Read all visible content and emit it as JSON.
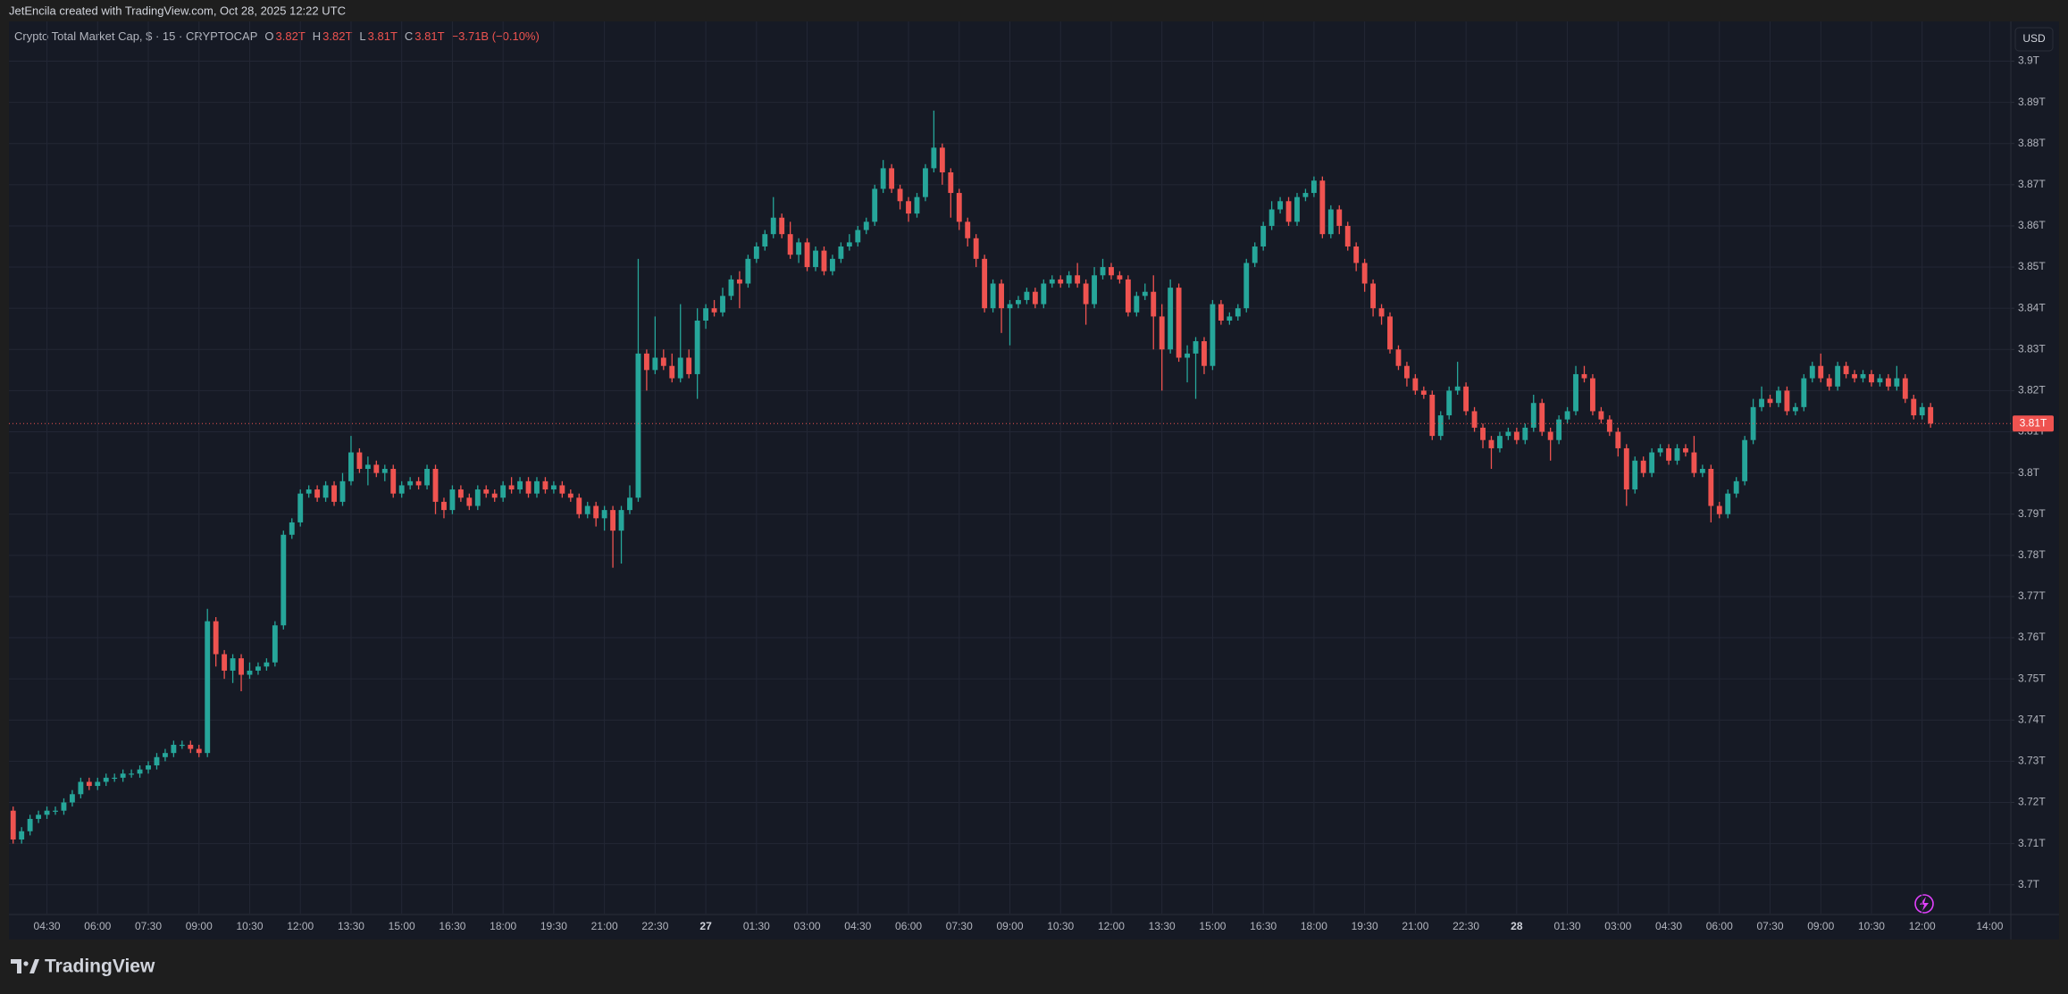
{
  "header": {
    "credit": "JetEncila created with TradingView.com, Oct 28, 2025 12:22 UTC"
  },
  "footer": {
    "brand": "TradingView"
  },
  "chart_data": {
    "type": "candlestick",
    "title": "Crypto Total Market Cap, $ · 15 · CRYPTOCAP",
    "legend": [
      {
        "label": "O",
        "value": "3.82T"
      },
      {
        "label": "H",
        "value": "3.82T"
      },
      {
        "label": "L",
        "value": "3.81T"
      },
      {
        "label": "C",
        "value": "3.81T"
      }
    ],
    "change": "−3.71B (−0.10%)",
    "currency": "USD",
    "up_color": "#26a69a",
    "down_color": "#ef5350",
    "grid": true,
    "ylim": [
      3.693,
      3.909
    ],
    "yticks": [
      {
        "value": 3.7,
        "label": "3.7T"
      },
      {
        "value": 3.71,
        "label": "3.71T"
      },
      {
        "value": 3.72,
        "label": "3.72T"
      },
      {
        "value": 3.73,
        "label": "3.73T"
      },
      {
        "value": 3.74,
        "label": "3.74T"
      },
      {
        "value": 3.75,
        "label": "3.75T"
      },
      {
        "value": 3.76,
        "label": "3.76T"
      },
      {
        "value": 3.77,
        "label": "3.77T"
      },
      {
        "value": 3.78,
        "label": "3.78T"
      },
      {
        "value": 3.79,
        "label": "3.79T"
      },
      {
        "value": 3.8,
        "label": "3.8T"
      },
      {
        "value": 3.81,
        "label": "3.81T"
      },
      {
        "value": 3.82,
        "label": "3.82T"
      },
      {
        "value": 3.83,
        "label": "3.83T"
      },
      {
        "value": 3.84,
        "label": "3.84T"
      },
      {
        "value": 3.85,
        "label": "3.85T"
      },
      {
        "value": 3.86,
        "label": "3.86T"
      },
      {
        "value": 3.87,
        "label": "3.87T"
      },
      {
        "value": 3.88,
        "label": "3.88T"
      },
      {
        "value": 3.89,
        "label": "3.89T"
      },
      {
        "value": 3.9,
        "label": "3.9T"
      }
    ],
    "last_price": {
      "value": 3.812,
      "label": "3.81T"
    },
    "categories": [
      null,
      null,
      null,
      null,
      "04:30",
      null,
      null,
      null,
      null,
      null,
      "06:00",
      null,
      null,
      null,
      null,
      null,
      "07:30",
      null,
      null,
      null,
      null,
      null,
      "09:00",
      null,
      null,
      null,
      null,
      null,
      "10:30",
      null,
      null,
      null,
      null,
      null,
      "12:00",
      null,
      null,
      null,
      null,
      null,
      "13:30",
      null,
      null,
      null,
      null,
      null,
      "15:00",
      null,
      null,
      null,
      null,
      null,
      "16:30",
      null,
      null,
      null,
      null,
      null,
      "18:00",
      null,
      null,
      null,
      null,
      null,
      "19:30",
      null,
      null,
      null,
      null,
      null,
      "21:00",
      null,
      null,
      null,
      null,
      null,
      "22:30",
      null,
      null,
      null,
      null,
      null,
      "27",
      null,
      null,
      null,
      null,
      null,
      "01:30",
      null,
      null,
      null,
      null,
      null,
      "03:00",
      null,
      null,
      null,
      null,
      null,
      "04:30",
      null,
      null,
      null,
      null,
      null,
      "06:00",
      null,
      null,
      null,
      null,
      null,
      "07:30",
      null,
      null,
      null,
      null,
      null,
      "09:00",
      null,
      null,
      null,
      null,
      null,
      "10:30",
      null,
      null,
      null,
      null,
      null,
      "12:00",
      null,
      null,
      null,
      null,
      null,
      "13:30",
      null,
      null,
      null,
      null,
      null,
      "15:00",
      null,
      null,
      null,
      null,
      null,
      "16:30",
      null,
      null,
      null,
      null,
      null,
      "18:00",
      null,
      null,
      null,
      null,
      null,
      "19:30",
      null,
      null,
      null,
      null,
      null,
      "21:00",
      null,
      null,
      null,
      null,
      null,
      "22:30",
      null,
      null,
      null,
      null,
      null,
      "28",
      null,
      null,
      null,
      null,
      null,
      "01:30",
      null,
      null,
      null,
      null,
      null,
      "03:00",
      null,
      null,
      null,
      null,
      null,
      "04:30",
      null,
      null,
      null,
      null,
      null,
      "06:00",
      null,
      null,
      null,
      null,
      null,
      "07:30",
      null,
      null,
      null,
      null,
      null,
      "09:00",
      null,
      null,
      null,
      null,
      null,
      "10:30",
      null,
      null,
      null,
      null,
      null,
      "12:00",
      null,
      null,
      null,
      null,
      null,
      null,
      null,
      "14:00",
      null,
      null
    ],
    "open": [
      3.718,
      3.711,
      3.713,
      3.716,
      3.717,
      3.718,
      3.718,
      3.72,
      3.722,
      3.725,
      3.724,
      3.725,
      3.726,
      3.726,
      3.727,
      3.727,
      3.728,
      3.729,
      3.731,
      3.732,
      3.734,
      3.734,
      3.733,
      3.732,
      3.764,
      3.756,
      3.752,
      3.755,
      3.751,
      3.752,
      3.753,
      3.754,
      3.763,
      3.785,
      3.788,
      3.795,
      3.796,
      3.794,
      3.797,
      3.793,
      3.798,
      3.805,
      3.801,
      3.802,
      3.8,
      3.801,
      3.795,
      3.797,
      3.798,
      3.797,
      3.801,
      3.793,
      3.791,
      3.796,
      3.794,
      3.792,
      3.796,
      3.795,
      3.794,
      3.797,
      3.796,
      3.798,
      3.795,
      3.798,
      3.796,
      3.797,
      3.795,
      3.794,
      3.79,
      3.792,
      3.789,
      3.791,
      3.786,
      3.791,
      3.794,
      3.829,
      3.825,
      3.828,
      3.826,
      3.823,
      3.828,
      3.824,
      3.837,
      3.84,
      3.839,
      3.843,
      3.847,
      3.846,
      3.852,
      3.855,
      3.858,
      3.862,
      3.858,
      3.853,
      3.856,
      3.85,
      3.854,
      3.849,
      3.852,
      3.855,
      3.856,
      3.859,
      3.861,
      3.869,
      3.874,
      3.869,
      3.866,
      3.863,
      3.867,
      3.874,
      3.879,
      3.873,
      3.868,
      3.861,
      3.857,
      3.852,
      3.84,
      3.846,
      3.84,
      3.841,
      3.842,
      3.844,
      3.841,
      3.846,
      3.847,
      3.846,
      3.848,
      3.846,
      3.841,
      3.848,
      3.85,
      3.848,
      3.847,
      3.839,
      3.843,
      3.844,
      3.838,
      3.83,
      3.845,
      3.828,
      3.829,
      3.832,
      3.826,
      3.841,
      3.837,
      3.838,
      3.84,
      3.851,
      3.855,
      3.86,
      3.864,
      3.866,
      3.861,
      3.867,
      3.868,
      3.871,
      3.858,
      3.864,
      3.86,
      3.855,
      3.851,
      3.846,
      3.84,
      3.838,
      3.83,
      3.826,
      3.823,
      3.82,
      3.819,
      3.809,
      3.814,
      3.82,
      3.821,
      3.815,
      3.811,
      3.808,
      3.806,
      3.809,
      3.81,
      3.808,
      3.811,
      3.817,
      3.81,
      3.808,
      3.813,
      3.815,
      3.824,
      3.823,
      3.815,
      3.813,
      3.81,
      3.806,
      3.796,
      3.803,
      3.8,
      3.805,
      3.806,
      3.803,
      3.806,
      3.805,
      3.8,
      3.801,
      3.792,
      3.79,
      3.795,
      3.798,
      3.808,
      3.816,
      3.818,
      3.817,
      3.82,
      3.815,
      3.816,
      3.823,
      3.826,
      3.823,
      3.821,
      3.826,
      3.824,
      3.823,
      3.824,
      3.822,
      3.823,
      3.821,
      3.823,
      3.818,
      3.814,
      3.816,
      null,
      null,
      null,
      null,
      null,
      null,
      null,
      null,
      null
    ],
    "high": [
      3.719,
      3.714,
      3.717,
      3.718,
      3.719,
      3.719,
      3.721,
      3.723,
      3.726,
      3.726,
      3.726,
      3.727,
      3.727,
      3.728,
      3.728,
      3.729,
      3.73,
      3.732,
      3.733,
      3.735,
      3.735,
      3.735,
      3.734,
      3.767,
      3.765,
      3.757,
      3.756,
      3.756,
      3.754,
      3.754,
      3.755,
      3.764,
      3.786,
      3.789,
      3.796,
      3.797,
      3.797,
      3.798,
      3.798,
      3.8,
      3.809,
      3.806,
      3.804,
      3.803,
      3.802,
      3.802,
      3.798,
      3.799,
      3.799,
      3.802,
      3.802,
      3.794,
      3.797,
      3.797,
      3.795,
      3.797,
      3.797,
      3.796,
      3.798,
      3.799,
      3.799,
      3.799,
      3.799,
      3.799,
      3.798,
      3.798,
      3.796,
      3.795,
      3.793,
      3.793,
      3.792,
      3.792,
      3.792,
      3.797,
      3.852,
      3.83,
      3.838,
      3.83,
      3.829,
      3.841,
      3.83,
      3.84,
      3.841,
      3.842,
      3.845,
      3.848,
      3.849,
      3.853,
      3.856,
      3.859,
      3.867,
      3.863,
      3.861,
      3.857,
      3.857,
      3.855,
      3.855,
      3.853,
      3.856,
      3.858,
      3.86,
      3.862,
      3.87,
      3.876,
      3.875,
      3.87,
      3.867,
      3.868,
      3.875,
      3.888,
      3.88,
      3.874,
      3.869,
      3.862,
      3.858,
      3.853,
      3.847,
      3.847,
      3.842,
      3.843,
      3.845,
      3.845,
      3.847,
      3.848,
      3.848,
      3.849,
      3.851,
      3.847,
      3.85,
      3.852,
      3.851,
      3.849,
      3.848,
      3.844,
      3.846,
      3.848,
      3.841,
      3.847,
      3.846,
      3.831,
      3.833,
      3.833,
      3.842,
      3.842,
      3.839,
      3.841,
      3.852,
      3.856,
      3.861,
      3.866,
      3.867,
      3.867,
      3.868,
      3.869,
      3.872,
      3.872,
      3.865,
      3.865,
      3.861,
      3.856,
      3.852,
      3.847,
      3.841,
      3.839,
      3.831,
      3.827,
      3.824,
      3.821,
      3.82,
      3.815,
      3.821,
      3.827,
      3.822,
      3.816,
      3.812,
      3.809,
      3.81,
      3.811,
      3.811,
      3.812,
      3.819,
      3.818,
      3.811,
      3.814,
      3.816,
      3.826,
      3.826,
      3.824,
      3.816,
      3.814,
      3.811,
      3.807,
      3.804,
      3.804,
      3.806,
      3.807,
      3.807,
      3.807,
      3.807,
      3.809,
      3.802,
      3.802,
      3.793,
      3.796,
      3.799,
      3.809,
      3.818,
      3.821,
      3.819,
      3.821,
      3.821,
      3.817,
      3.824,
      3.827,
      3.829,
      3.824,
      3.827,
      3.827,
      3.825,
      3.825,
      3.825,
      3.824,
      3.824,
      3.826,
      3.824,
      3.819,
      3.817,
      3.817,
      null,
      null,
      null,
      null,
      null,
      null,
      null,
      null,
      null
    ],
    "low": [
      3.71,
      3.71,
      3.712,
      3.715,
      3.716,
      3.717,
      3.717,
      3.719,
      3.721,
      3.723,
      3.723,
      3.724,
      3.725,
      3.725,
      3.726,
      3.726,
      3.727,
      3.728,
      3.73,
      3.731,
      3.733,
      3.732,
      3.731,
      3.731,
      3.753,
      3.75,
      3.749,
      3.747,
      3.75,
      3.751,
      3.752,
      3.753,
      3.762,
      3.784,
      3.787,
      3.794,
      3.793,
      3.793,
      3.792,
      3.792,
      3.797,
      3.8,
      3.797,
      3.799,
      3.798,
      3.794,
      3.794,
      3.796,
      3.796,
      3.796,
      3.79,
      3.789,
      3.79,
      3.793,
      3.791,
      3.791,
      3.794,
      3.793,
      3.793,
      3.795,
      3.795,
      3.794,
      3.794,
      3.795,
      3.795,
      3.794,
      3.793,
      3.789,
      3.789,
      3.787,
      3.786,
      3.777,
      3.778,
      3.79,
      3.793,
      3.82,
      3.824,
      3.825,
      3.822,
      3.822,
      3.823,
      3.818,
      3.835,
      3.838,
      3.838,
      3.842,
      3.84,
      3.845,
      3.851,
      3.854,
      3.857,
      3.857,
      3.852,
      3.851,
      3.849,
      3.849,
      3.848,
      3.848,
      3.851,
      3.854,
      3.855,
      3.858,
      3.86,
      3.868,
      3.868,
      3.864,
      3.861,
      3.862,
      3.866,
      3.873,
      3.87,
      3.862,
      3.859,
      3.855,
      3.85,
      3.839,
      3.839,
      3.834,
      3.831,
      3.84,
      3.841,
      3.84,
      3.84,
      3.845,
      3.845,
      3.845,
      3.845,
      3.836,
      3.84,
      3.847,
      3.847,
      3.846,
      3.838,
      3.838,
      3.842,
      3.83,
      3.82,
      3.829,
      3.827,
      3.822,
      3.818,
      3.824,
      3.825,
      3.836,
      3.836,
      3.837,
      3.839,
      3.85,
      3.854,
      3.859,
      3.863,
      3.86,
      3.86,
      3.866,
      3.867,
      3.857,
      3.857,
      3.858,
      3.854,
      3.849,
      3.844,
      3.838,
      3.836,
      3.829,
      3.825,
      3.821,
      3.819,
      3.818,
      3.808,
      3.808,
      3.813,
      3.819,
      3.814,
      3.81,
      3.806,
      3.801,
      3.805,
      3.808,
      3.807,
      3.807,
      3.81,
      3.809,
      3.803,
      3.807,
      3.812,
      3.814,
      3.822,
      3.814,
      3.812,
      3.809,
      3.804,
      3.792,
      3.795,
      3.799,
      3.799,
      3.804,
      3.802,
      3.802,
      3.804,
      3.799,
      3.799,
      3.788,
      3.789,
      3.789,
      3.794,
      3.797,
      3.807,
      3.815,
      3.816,
      3.816,
      3.814,
      3.814,
      3.815,
      3.822,
      3.822,
      3.82,
      3.82,
      3.823,
      3.822,
      3.822,
      3.821,
      3.821,
      3.82,
      3.82,
      3.817,
      3.813,
      3.813,
      3.811,
      null,
      null,
      null,
      null,
      null,
      null,
      null,
      null,
      null
    ],
    "close": [
      3.711,
      3.713,
      3.716,
      3.717,
      3.718,
      3.718,
      3.72,
      3.722,
      3.725,
      3.724,
      3.725,
      3.726,
      3.726,
      3.727,
      3.727,
      3.728,
      3.729,
      3.731,
      3.732,
      3.734,
      3.734,
      3.733,
      3.732,
      3.764,
      3.756,
      3.752,
      3.755,
      3.751,
      3.752,
      3.753,
      3.754,
      3.763,
      3.785,
      3.788,
      3.795,
      3.796,
      3.794,
      3.797,
      3.793,
      3.798,
      3.805,
      3.801,
      3.802,
      3.8,
      3.801,
      3.795,
      3.797,
      3.798,
      3.797,
      3.801,
      3.793,
      3.791,
      3.796,
      3.794,
      3.792,
      3.796,
      3.795,
      3.794,
      3.797,
      3.796,
      3.798,
      3.795,
      3.798,
      3.796,
      3.797,
      3.795,
      3.794,
      3.79,
      3.792,
      3.789,
      3.791,
      3.786,
      3.791,
      3.794,
      3.829,
      3.825,
      3.828,
      3.826,
      3.823,
      3.828,
      3.824,
      3.837,
      3.84,
      3.839,
      3.843,
      3.847,
      3.846,
      3.852,
      3.855,
      3.858,
      3.862,
      3.858,
      3.853,
      3.856,
      3.85,
      3.854,
      3.849,
      3.852,
      3.855,
      3.856,
      3.859,
      3.861,
      3.869,
      3.874,
      3.869,
      3.866,
      3.863,
      3.867,
      3.874,
      3.879,
      3.873,
      3.868,
      3.861,
      3.857,
      3.852,
      3.84,
      3.846,
      3.84,
      3.841,
      3.842,
      3.844,
      3.841,
      3.846,
      3.847,
      3.846,
      3.848,
      3.846,
      3.841,
      3.848,
      3.85,
      3.848,
      3.847,
      3.839,
      3.843,
      3.844,
      3.838,
      3.83,
      3.845,
      3.828,
      3.829,
      3.832,
      3.826,
      3.841,
      3.837,
      3.838,
      3.84,
      3.851,
      3.855,
      3.86,
      3.864,
      3.866,
      3.861,
      3.867,
      3.868,
      3.871,
      3.858,
      3.864,
      3.86,
      3.855,
      3.851,
      3.846,
      3.84,
      3.838,
      3.83,
      3.826,
      3.823,
      3.82,
      3.819,
      3.809,
      3.814,
      3.82,
      3.821,
      3.815,
      3.811,
      3.808,
      3.806,
      3.809,
      3.81,
      3.808,
      3.811,
      3.817,
      3.81,
      3.808,
      3.813,
      3.815,
      3.824,
      3.823,
      3.815,
      3.813,
      3.81,
      3.806,
      3.796,
      3.803,
      3.8,
      3.805,
      3.806,
      3.803,
      3.806,
      3.805,
      3.8,
      3.801,
      3.792,
      3.79,
      3.795,
      3.798,
      3.808,
      3.816,
      3.818,
      3.817,
      3.82,
      3.815,
      3.816,
      3.823,
      3.826,
      3.823,
      3.821,
      3.826,
      3.824,
      3.823,
      3.824,
      3.822,
      3.823,
      3.821,
      3.823,
      3.818,
      3.814,
      3.816,
      3.812,
      null,
      null,
      null,
      null,
      null,
      null,
      null,
      null,
      null
    ]
  }
}
